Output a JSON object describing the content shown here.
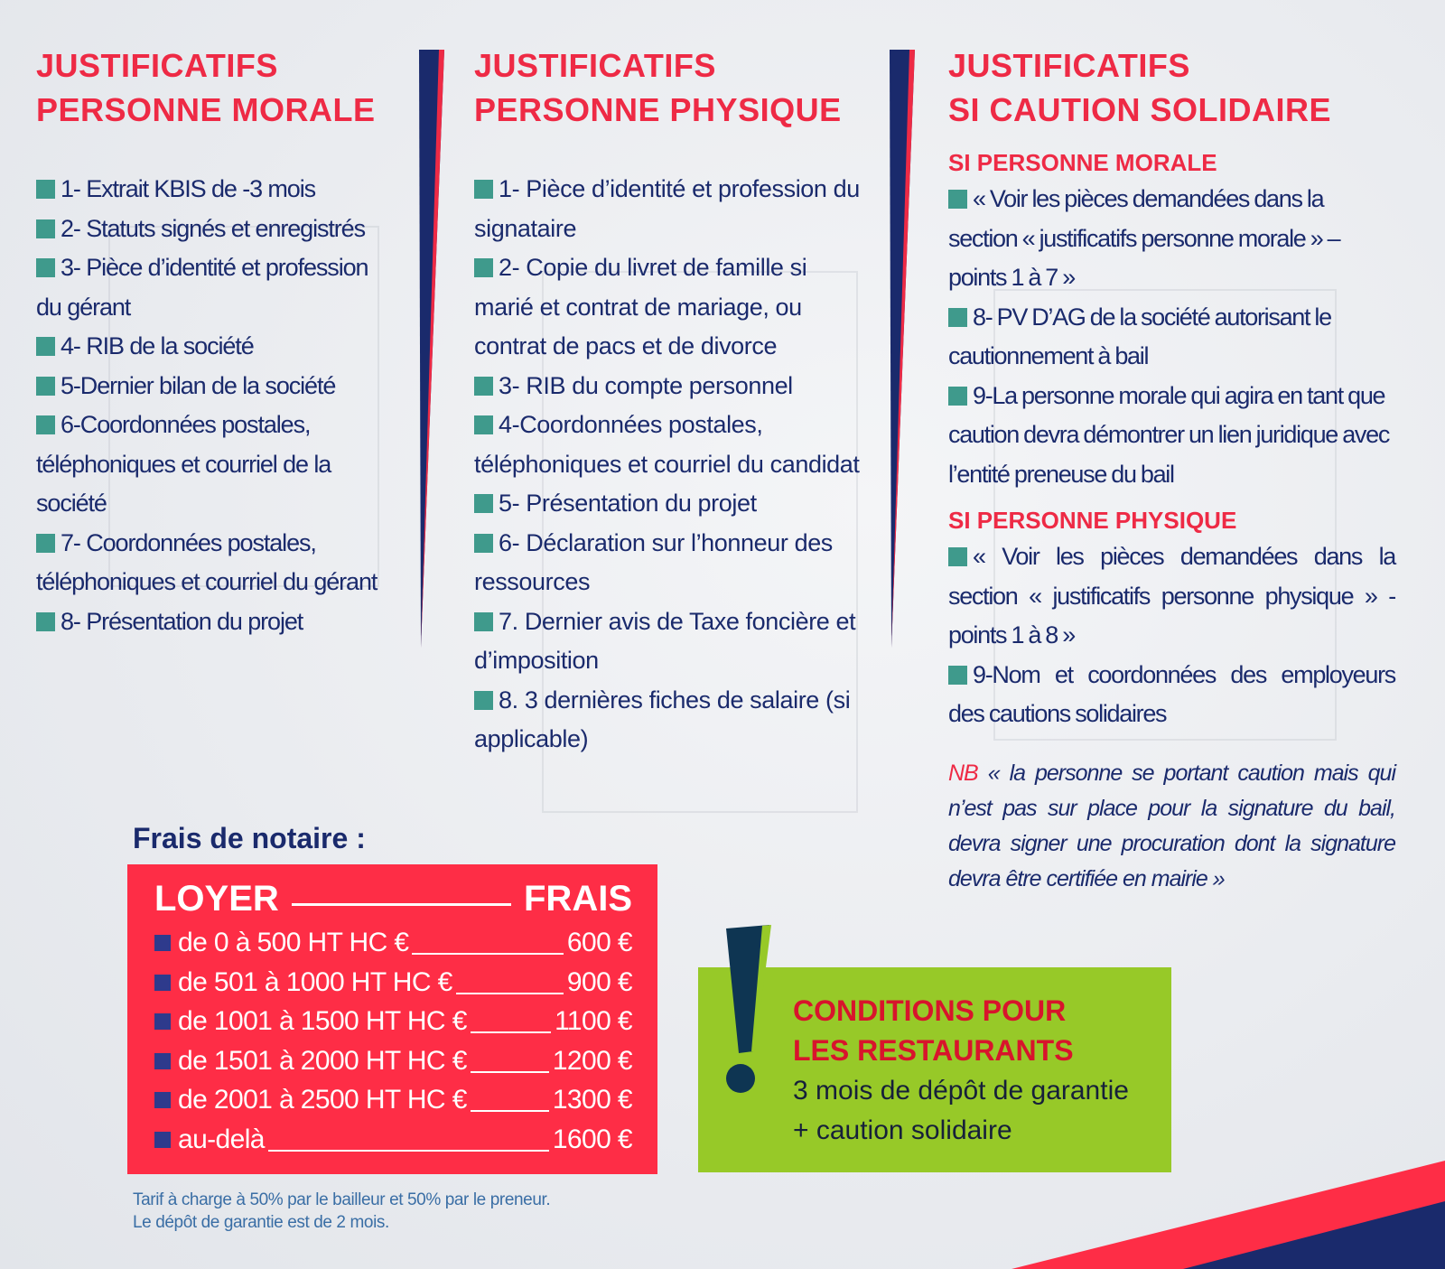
{
  "col1": {
    "title1": "JUSTIFICATIFS",
    "title2": "PERSONNE MORALE",
    "items": [
      "1- Extrait KBIS de -3 mois",
      "2- Statuts signés et enregistrés",
      "3- Pièce d’identité et profession du gérant",
      "4- RIB de la société",
      "5-Dernier bilan de la société",
      "6-Coordonnées postales, téléphoniques et courriel de la société",
      "7- Coordonnées postales, téléphoniques et courriel du gérant",
      "8- Présentation du projet"
    ]
  },
  "col2": {
    "title1": "JUSTIFICATIFS",
    "title2": "PERSONNE PHYSIQUE",
    "items": [
      "1- Pièce d’identité et profession du signataire",
      "2- Copie du livret de famille si marié et contrat de mariage, ou contrat de pacs et de divorce",
      "3- RIB du compte personnel",
      "4-Coordonnées postales, téléphoniques et courriel du candidat",
      "5- Présentation du projet",
      "6- Déclaration sur l’honneur des ressources",
      "7. Dernier avis de Taxe foncière et d’imposition",
      "8. 3 dernières fiches de salaire (si applicable)"
    ]
  },
  "col3": {
    "title1": "JUSTIFICATIFS",
    "title2": "SI CAUTION SOLIDAIRE",
    "sub1": "SI PERSONNE MORALE",
    "items1": [
      "« Voir les pièces demandées dans la section « justificatifs personne morale » – points 1 à 7 »",
      "8- PV D’AG de la société autorisant le cautionnement à bail",
      "9-La personne morale qui agira en tant que caution devra démontrer un lien juridique avec l’entité preneuse du bail"
    ],
    "sub2": "SI PERSONNE PHYSIQUE",
    "items2": [
      "« Voir les pièces demandées dans la section « justificatifs personne physique » - points 1 à 8 »",
      "9-Nom et coordonnées des employeurs des cautions solidaires"
    ],
    "nb_label": "NB",
    "nb_text": "« la personne se portant caution mais qui n’est pas sur place pour la signature du bail, devra signer une procuration dont la signature devra être certifiée en mairie »"
  },
  "frais": {
    "title": "Frais de notaire :",
    "head_left": "LOYER",
    "head_right": "FRAIS",
    "rows": [
      {
        "range": "de 0 à 500 HT HC €",
        "fee": "600 €"
      },
      {
        "range": "de 501 à 1000 HT HC €",
        "fee": "900 €"
      },
      {
        "range": "de 1001 à 1500 HT HC €",
        "fee": "1100 €"
      },
      {
        "range": "de 1501 à 2000 HT HC €",
        "fee": "1200 €"
      },
      {
        "range": "de 2001 à 2500 HT HC €",
        "fee": "1300 €"
      },
      {
        "range": "au-delà",
        "fee": "1600 €"
      }
    ],
    "note1": "Tarif à charge à 50% par le bailleur et 50% par le preneur.",
    "note2": "Le dépôt de garantie est de 2 mois."
  },
  "restaurants": {
    "title1": "CONDITIONS POUR",
    "title2": "LES RESTAURANTS",
    "line1": "3 mois de dépôt de garantie",
    "line2": "+ caution solidaire",
    "icon": "exclamation-icon"
  },
  "colors": {
    "red": "#ee2a45",
    "navy": "#1a2a6c",
    "teal": "#3f9a8c",
    "green": "#97c928",
    "box_red": "#fe2d46"
  }
}
